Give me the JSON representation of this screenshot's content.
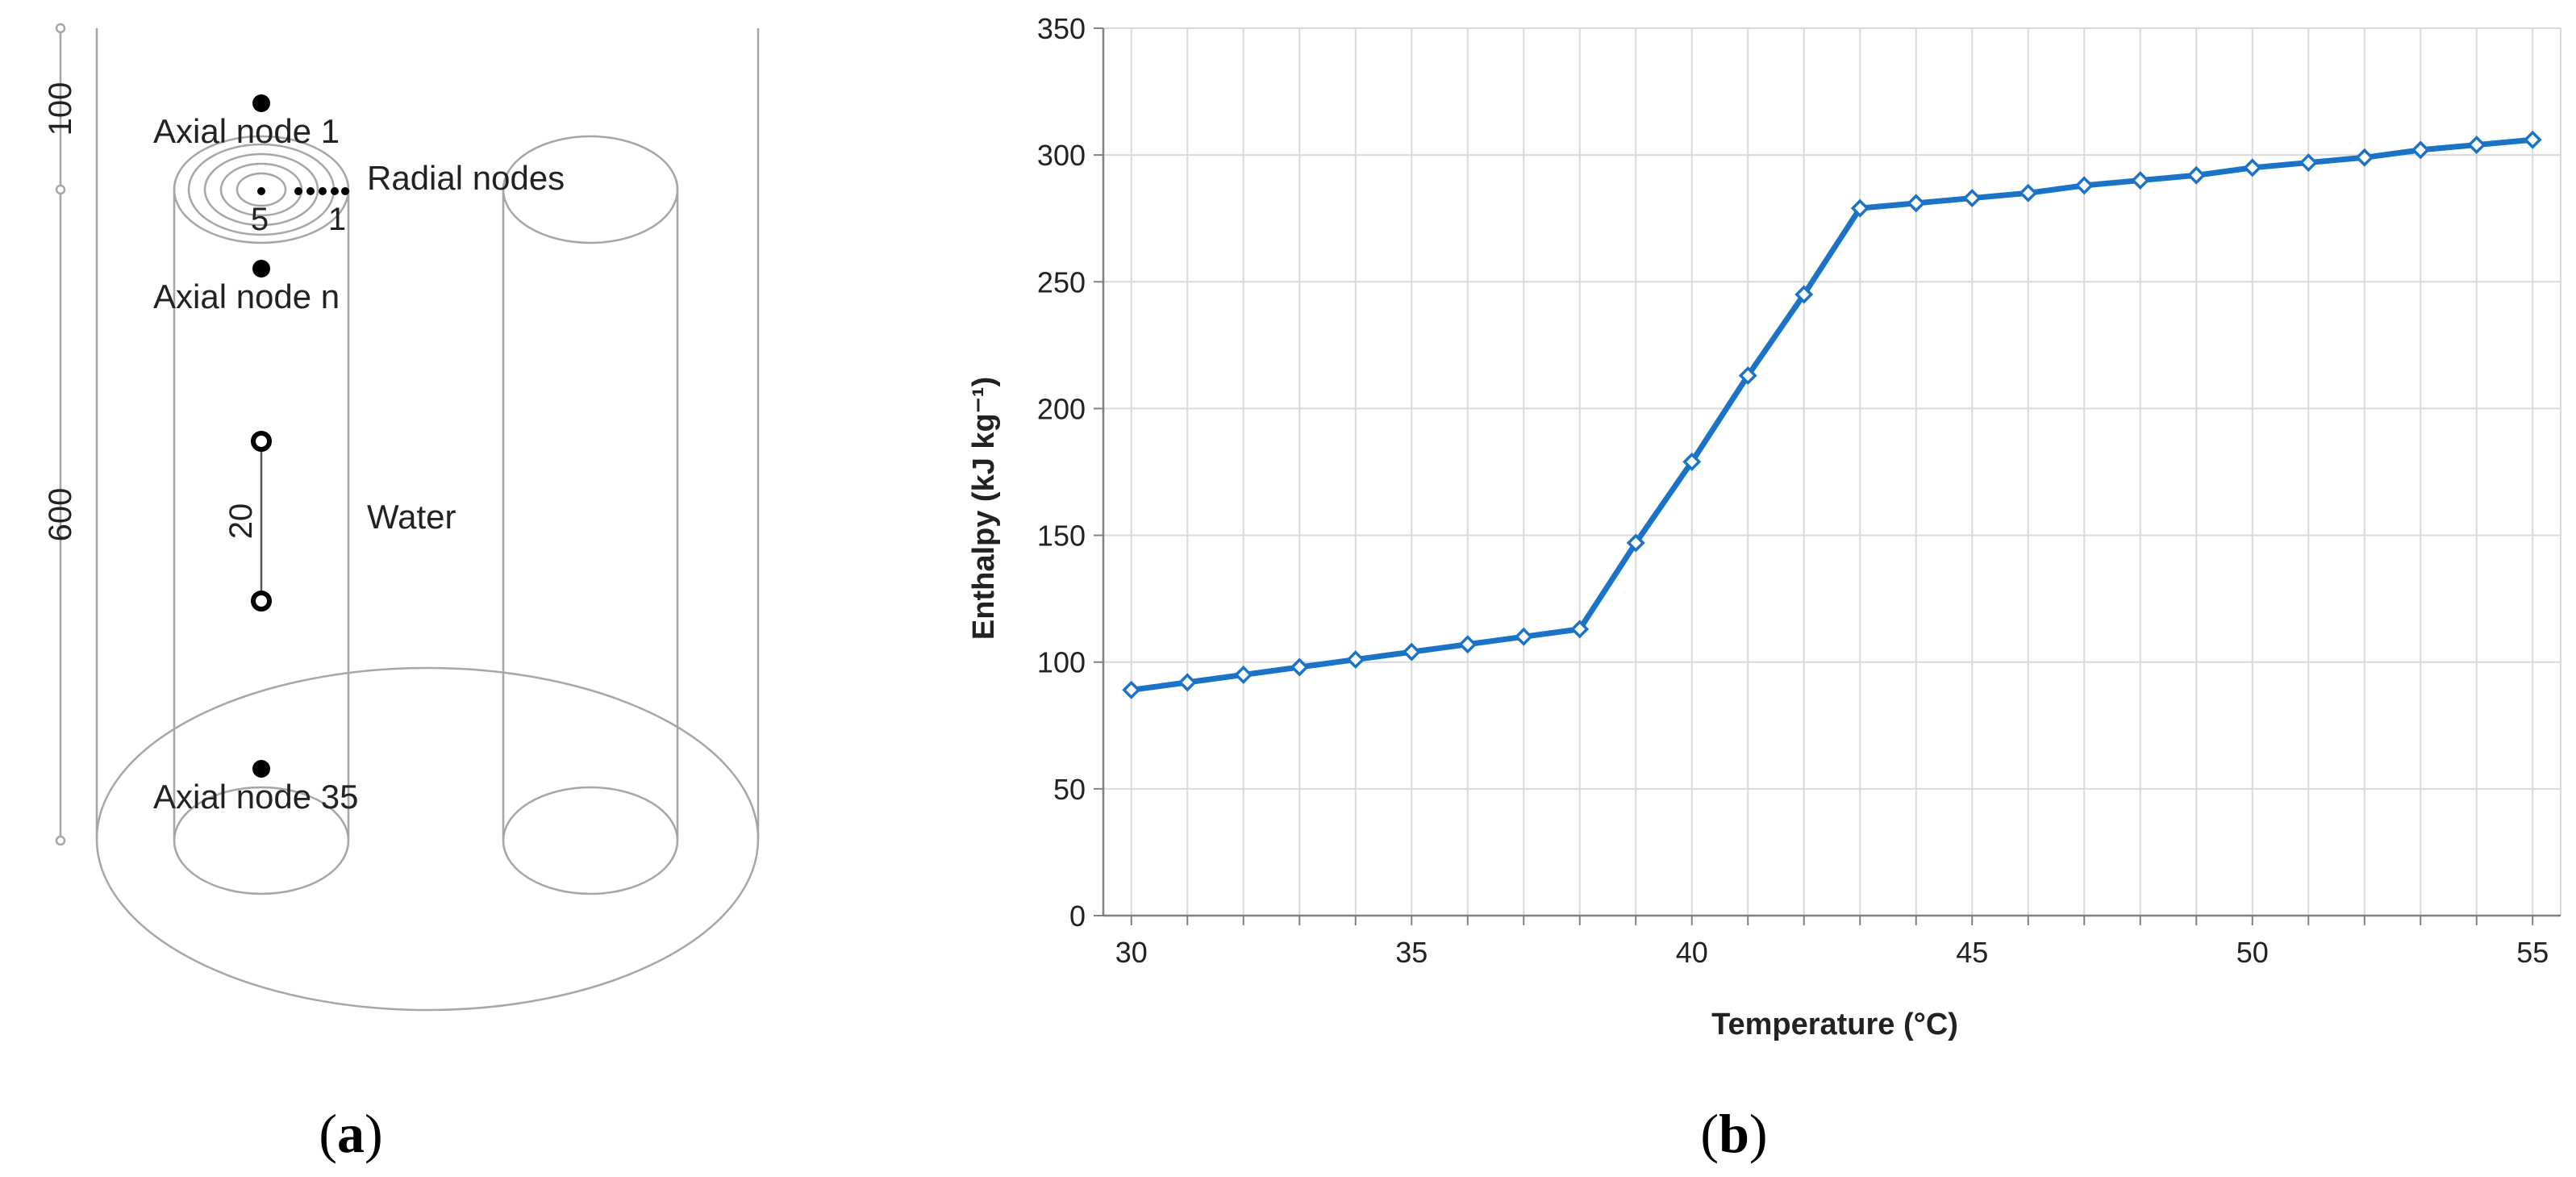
{
  "panel_a": {
    "caption_letter": "a",
    "dim_top": "100",
    "dim_main": "600",
    "axial_node_1": "Axial node 1",
    "radial_nodes": "Radial nodes",
    "radial_inner": "5",
    "radial_outer": "1",
    "axial_node_n": "Axial node n",
    "spacing": "20",
    "water": "Water",
    "axial_node_35": "Axial node 35"
  },
  "panel_b": {
    "caption_letter": "b"
  },
  "colors": {
    "series": "#1a73c7",
    "grid": "#d9d9d9",
    "axis": "#808080",
    "drawing": "#a6a6a6"
  },
  "chart_data": {
    "type": "line",
    "title": "",
    "xlabel": "Temperature (°C)",
    "ylabel": "Enthalpy (kJ kg⁻¹)",
    "xlim": [
      29.5,
      55.5
    ],
    "ylim": [
      0,
      350
    ],
    "x_ticks": [
      "30",
      "35",
      "40",
      "45",
      "50",
      "55"
    ],
    "y_ticks": [
      "0",
      "50",
      "100",
      "150",
      "200",
      "250",
      "300",
      "350"
    ],
    "grid": true,
    "legend": "none",
    "marker": "diamond",
    "series": [
      {
        "x": [
          30,
          31,
          32,
          33,
          34,
          35,
          36,
          37,
          38,
          39,
          40,
          41,
          42,
          43,
          44,
          45,
          46,
          47,
          48,
          49,
          50,
          51,
          52,
          53,
          54,
          55
        ],
        "y": [
          89,
          92,
          95,
          98,
          101,
          104,
          107,
          110,
          113,
          147,
          179,
          213,
          245,
          279,
          281,
          283,
          285,
          288,
          290,
          292,
          295,
          297,
          299,
          302,
          304,
          306
        ]
      }
    ]
  }
}
